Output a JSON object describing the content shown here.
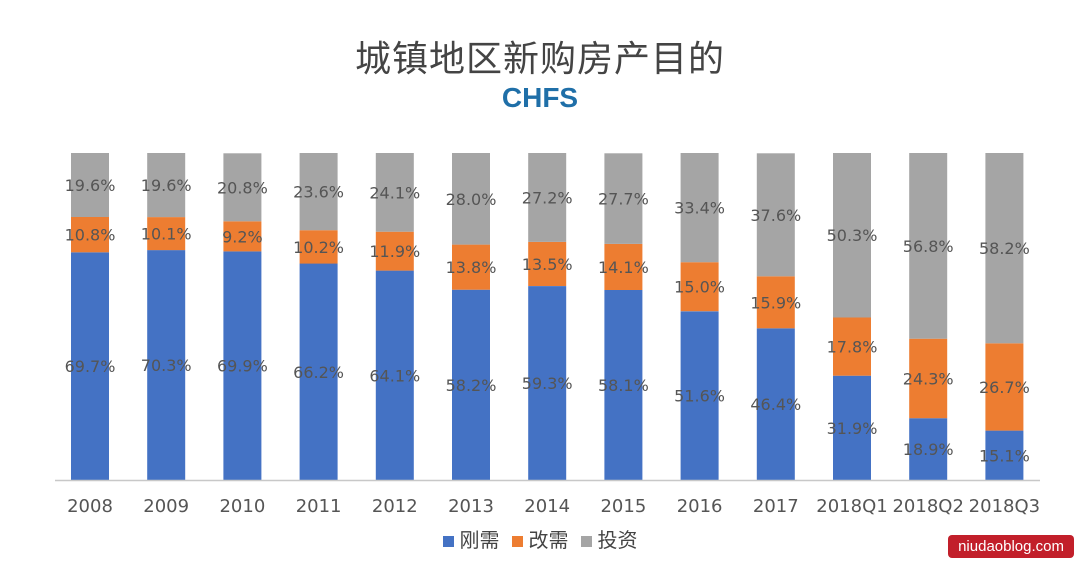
{
  "chart_data": {
    "type": "bar",
    "stacked": true,
    "title": "城镇地区新购房产目的",
    "subtitle": "CHFS",
    "categories": [
      "2008",
      "2009",
      "2010",
      "2011",
      "2012",
      "2013",
      "2014",
      "2015",
      "2016",
      "2017",
      "2018Q1",
      "2018Q2",
      "2018Q3"
    ],
    "series": [
      {
        "name": "刚需",
        "color": "#4472c4",
        "values": [
          69.7,
          70.3,
          69.9,
          66.2,
          64.1,
          58.2,
          59.3,
          58.1,
          51.6,
          46.4,
          31.9,
          18.9,
          15.1
        ]
      },
      {
        "name": "改需",
        "color": "#ed7d31",
        "values": [
          10.8,
          10.1,
          9.2,
          10.2,
          11.9,
          13.8,
          13.5,
          14.1,
          15.0,
          15.9,
          17.8,
          24.3,
          26.7
        ]
      },
      {
        "name": "投资",
        "color": "#a5a5a5",
        "values": [
          19.6,
          19.6,
          20.8,
          23.6,
          24.1,
          28.0,
          27.2,
          27.7,
          33.4,
          37.6,
          50.3,
          56.8,
          58.2
        ]
      }
    ],
    "value_suffix": "%",
    "ylim": [
      0,
      100
    ],
    "legend_position": "bottom",
    "grid": false
  },
  "watermark": "niudaoblog.com"
}
